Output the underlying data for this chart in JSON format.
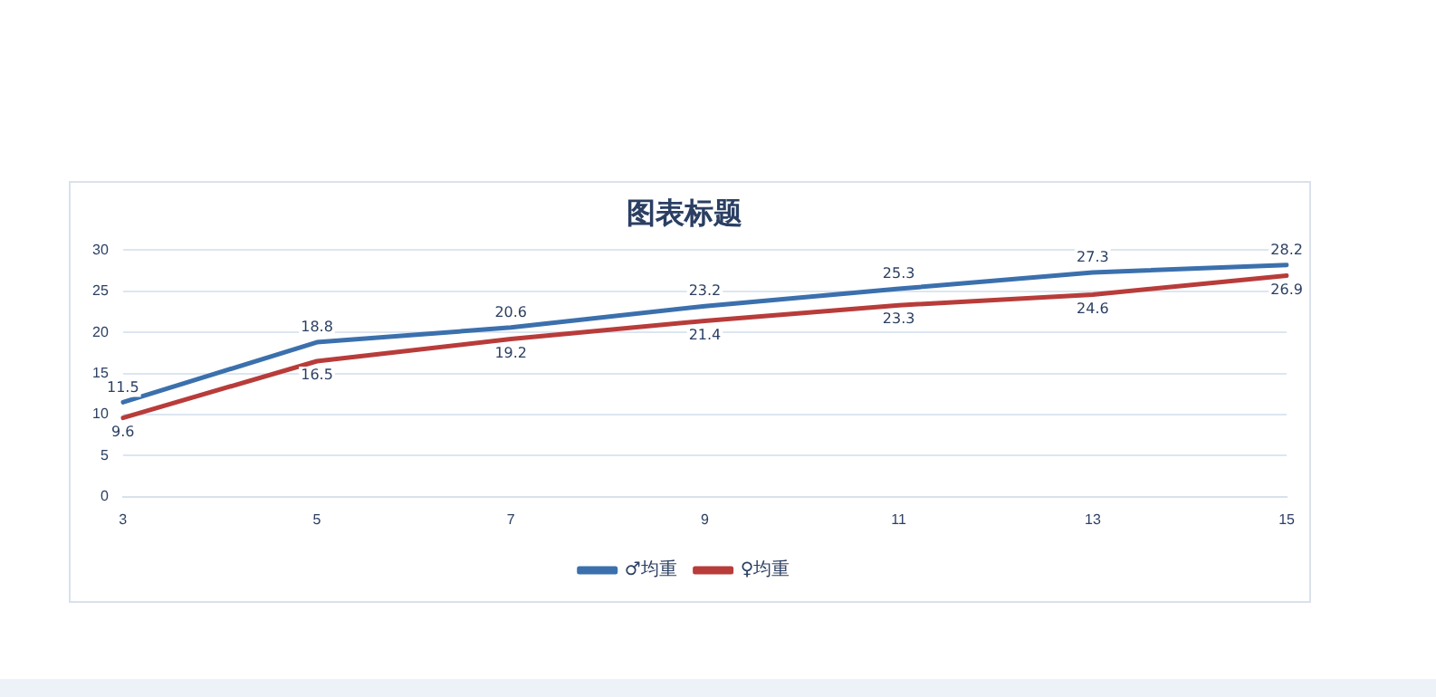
{
  "chart_data": {
    "type": "line",
    "title": "图表标题",
    "categories": [
      "3",
      "5",
      "7",
      "9",
      "11",
      "13",
      "15"
    ],
    "series": [
      {
        "name": "♂均重",
        "color": "#3b70ad",
        "values": [
          11.5,
          18.8,
          20.6,
          23.2,
          25.3,
          27.3,
          28.2
        ]
      },
      {
        "name": "♀均重",
        "color": "#b83c3a",
        "values": [
          9.6,
          16.5,
          19.2,
          21.4,
          23.3,
          24.6,
          26.9
        ]
      }
    ],
    "ylim": [
      0,
      30
    ],
    "yticks": [
      0,
      5,
      10,
      15,
      20,
      25,
      30
    ],
    "grid": "y",
    "legend": "bottom",
    "marker": "none",
    "line_style": "solid",
    "data_labels": true
  }
}
